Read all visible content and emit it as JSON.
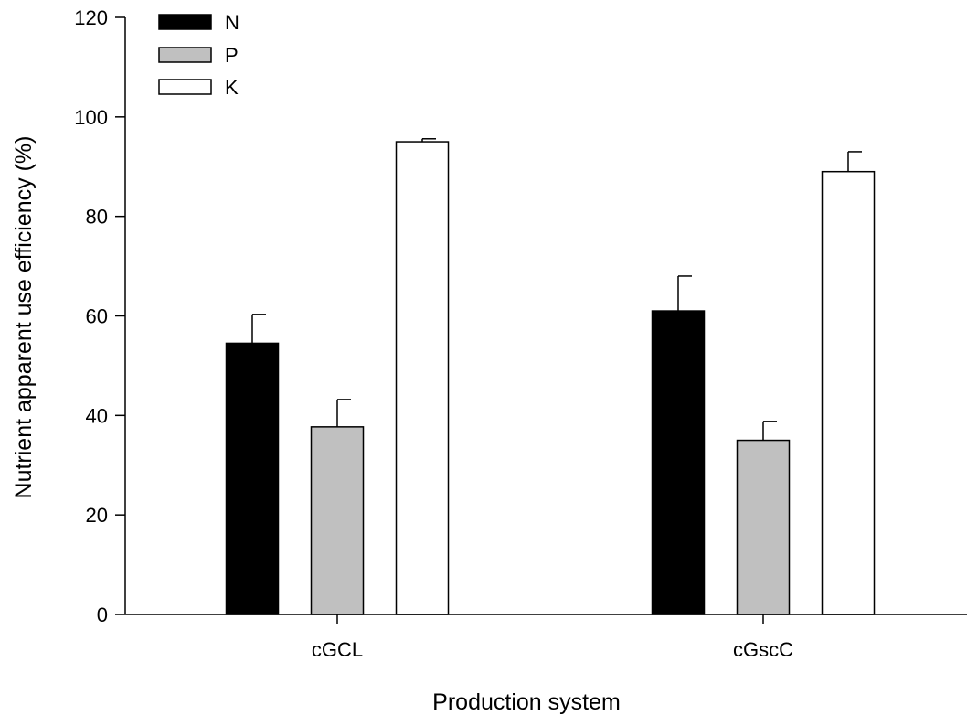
{
  "chart_data": {
    "type": "bar",
    "xlabel": "Production system",
    "ylabel": "Nutrient apparent use efficiency (%)",
    "categories": [
      "cGCL",
      "cGscC"
    ],
    "ylim": [
      0,
      120
    ],
    "yticks": [
      0,
      20,
      40,
      60,
      80,
      100,
      120
    ],
    "error_bars": "upper",
    "legend_position": "top-left",
    "grid": false,
    "series": [
      {
        "name": "N",
        "color": "#000000",
        "values": [
          54.5,
          61.0
        ],
        "errors": [
          5.8,
          7.0
        ]
      },
      {
        "name": "P",
        "color": "#c0c0c0",
        "values": [
          37.7,
          35.0
        ],
        "errors": [
          5.5,
          3.8
        ]
      },
      {
        "name": "K",
        "color": "#ffffff",
        "values": [
          95.0,
          89.0
        ],
        "errors": [
          0.6,
          4.0
        ]
      }
    ]
  }
}
